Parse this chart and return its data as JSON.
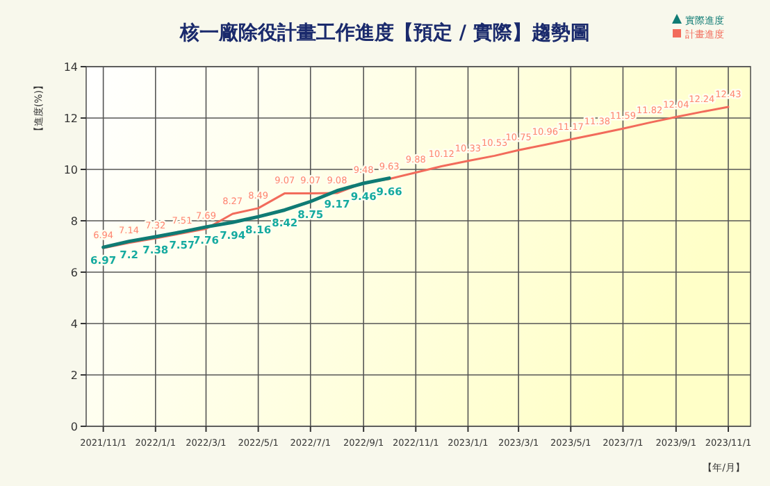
{
  "chart_data": {
    "type": "line",
    "title": "核一廠除役計畫工作進度【預定 / 實際】趨勢圖",
    "xlabel": "【年/月】",
    "ylabel": "【進度(%)】",
    "x": [
      "2021-11",
      "2021-12",
      "2022-01",
      "2022-02",
      "2022-03",
      "2022-04",
      "2022-05",
      "2022-06",
      "2022-07",
      "2022-08",
      "2022-09",
      "2022-10",
      "2022-11",
      "2022-12",
      "2023-01",
      "2023-02",
      "2023-03",
      "2023-04",
      "2023-05",
      "2023-06",
      "2023-07",
      "2023-08",
      "2023-09",
      "2023-10",
      "2023-11"
    ],
    "series": [
      {
        "name": "計畫進度",
        "color": "#f26b5b",
        "values": [
          6.94,
          7.14,
          7.32,
          7.51,
          7.69,
          8.27,
          8.49,
          9.07,
          9.07,
          9.08,
          9.48,
          9.63,
          9.88,
          10.12,
          10.33,
          10.53,
          10.75,
          10.96,
          11.17,
          11.38,
          11.59,
          11.82,
          12.04,
          12.24,
          12.43
        ]
      },
      {
        "name": "實際進度",
        "color": "#0f7b74",
        "values": [
          6.97,
          7.2,
          7.38,
          7.57,
          7.76,
          7.94,
          8.16,
          8.42,
          8.75,
          9.17,
          9.46,
          9.66,
          null,
          null,
          null,
          null,
          null,
          null,
          null,
          null,
          null,
          null,
          null,
          null,
          null
        ]
      }
    ],
    "xlim": [
      "2021-10-12",
      "2023-11-27"
    ],
    "xticks": [
      {
        "value": "2021-11-01",
        "label": "2021/11/1"
      },
      {
        "value": "2022-01-01",
        "label": "2022/1/1"
      },
      {
        "value": "2022-03-01",
        "label": "2022/3/1"
      },
      {
        "value": "2022-05-01",
        "label": "2022/5/1"
      },
      {
        "value": "2022-07-01",
        "label": "2022/7/1"
      },
      {
        "value": "2022-09-01",
        "label": "2022/9/1"
      },
      {
        "value": "2022-11-01",
        "label": "2022/11/1"
      },
      {
        "value": "2023-01-01",
        "label": "2023/1/1"
      },
      {
        "value": "2023-03-01",
        "label": "2023/3/1"
      },
      {
        "value": "2023-05-01",
        "label": "2023/5/1"
      },
      {
        "value": "2023-07-01",
        "label": "2023/7/1"
      },
      {
        "value": "2023-09-01",
        "label": "2023/9/1"
      },
      {
        "value": "2023-11-01",
        "label": "2023/11/1"
      }
    ],
    "ylim": [
      0,
      14
    ],
    "yticks": [
      0,
      2,
      4,
      6,
      8,
      10,
      12,
      14
    ],
    "grid": true,
    "legend": "top right",
    "data_labels": true
  }
}
